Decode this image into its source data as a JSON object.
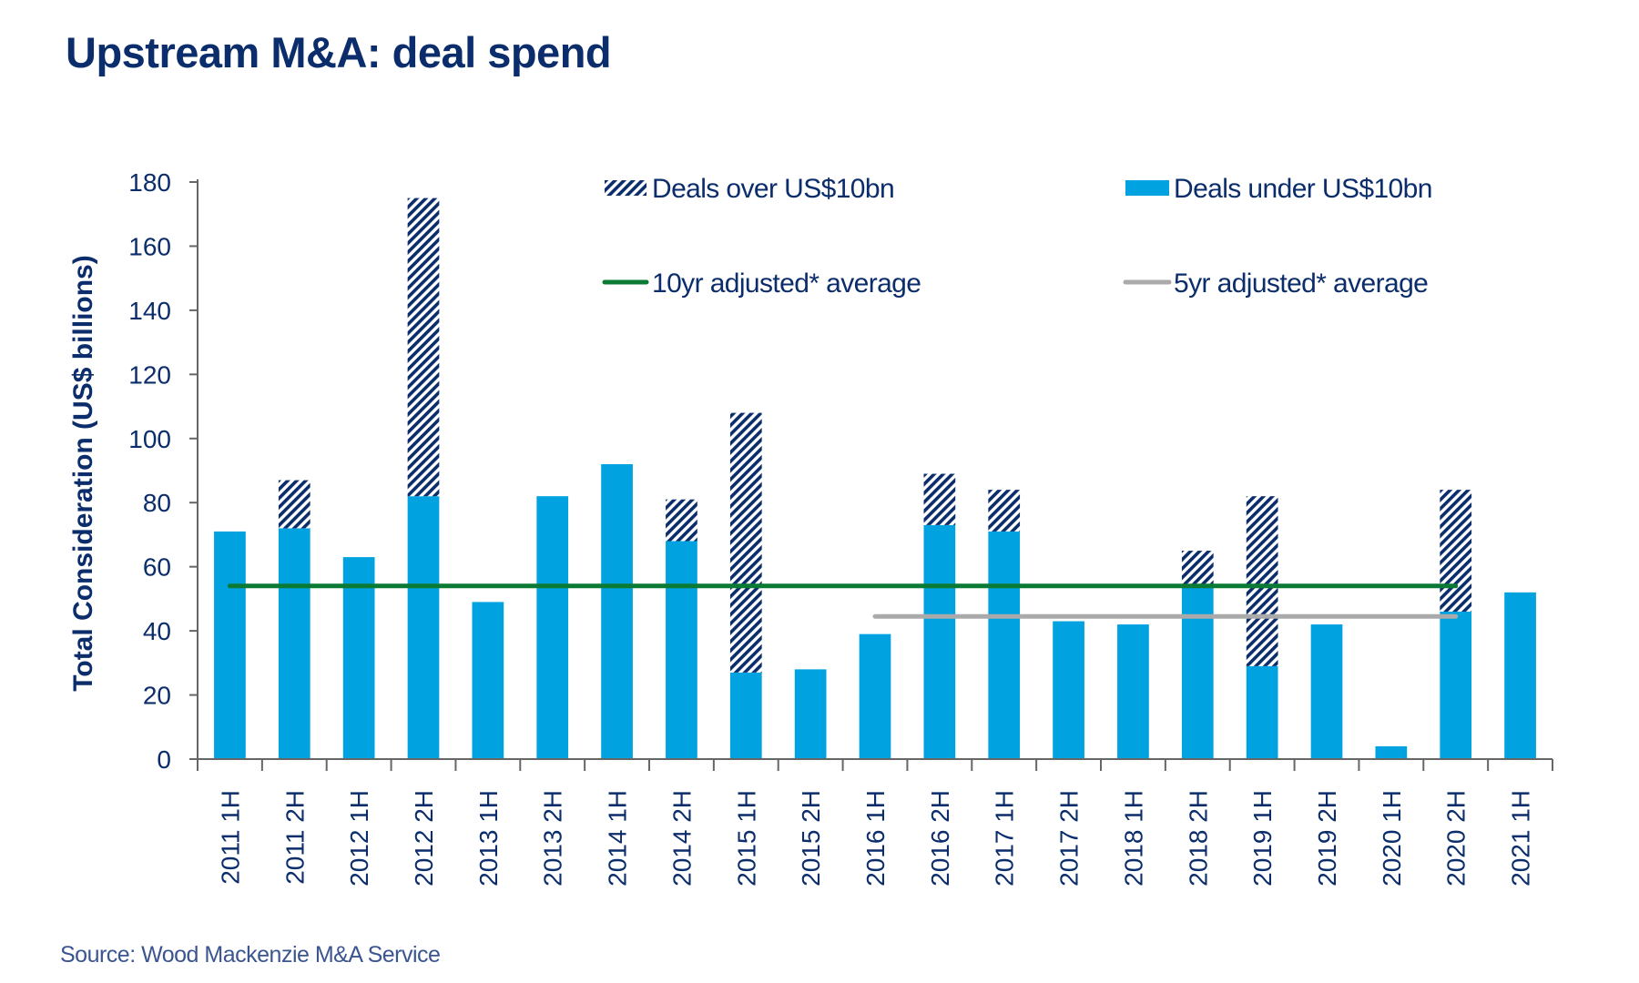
{
  "title": "Upstream M&A: deal spend",
  "source": "Source: Wood Mackenzie M&A Service",
  "colors": {
    "under": "#00a3e0",
    "over_hatch": "#0b2d6b",
    "avg10": "#0a7a35",
    "avg5": "#aaaaaa",
    "text": "#0b2d6b",
    "axis": "#666666"
  },
  "chart_data": {
    "type": "bar",
    "stacked": true,
    "title": "Upstream M&A: deal spend",
    "xlabel": "",
    "ylabel": "Total Consideration (US$ billions)",
    "ylim": [
      0,
      180
    ],
    "yticks": [
      0,
      20,
      40,
      60,
      80,
      100,
      120,
      140,
      160,
      180
    ],
    "grid": false,
    "legend_position": "top",
    "categories": [
      "2011 1H",
      "2011 2H",
      "2012 1H",
      "2012 2H",
      "2013 1H",
      "2013 2H",
      "2014 1H",
      "2014 2H",
      "2015 1H",
      "2015 2H",
      "2016 1H",
      "2016 2H",
      "2017 1H",
      "2017 2H",
      "2018 1H",
      "2018 2H",
      "2019 1H",
      "2019 2H",
      "2020 1H",
      "2020 2H",
      "2021 1H"
    ],
    "series": [
      {
        "name": "Deals under US$10bn",
        "style": "solid",
        "values": [
          71,
          72,
          63,
          82,
          49,
          82,
          92,
          68,
          27,
          28,
          39,
          73,
          71,
          43,
          42,
          54,
          29,
          42,
          4,
          46,
          52
        ]
      },
      {
        "name": "Deals over US$10bn",
        "style": "hatched",
        "values": [
          0,
          15,
          0,
          93,
          0,
          0,
          0,
          13,
          81,
          0,
          0,
          16,
          13,
          0,
          0,
          11,
          53,
          0,
          0,
          38,
          0
        ]
      }
    ],
    "lines": [
      {
        "name": "10yr adjusted* average",
        "value": 54,
        "from": "2011 1H",
        "to": "2020 2H"
      },
      {
        "name": "5yr adjusted* average",
        "value": 44.5,
        "from": "2016 1H",
        "to": "2020 2H"
      }
    ]
  }
}
